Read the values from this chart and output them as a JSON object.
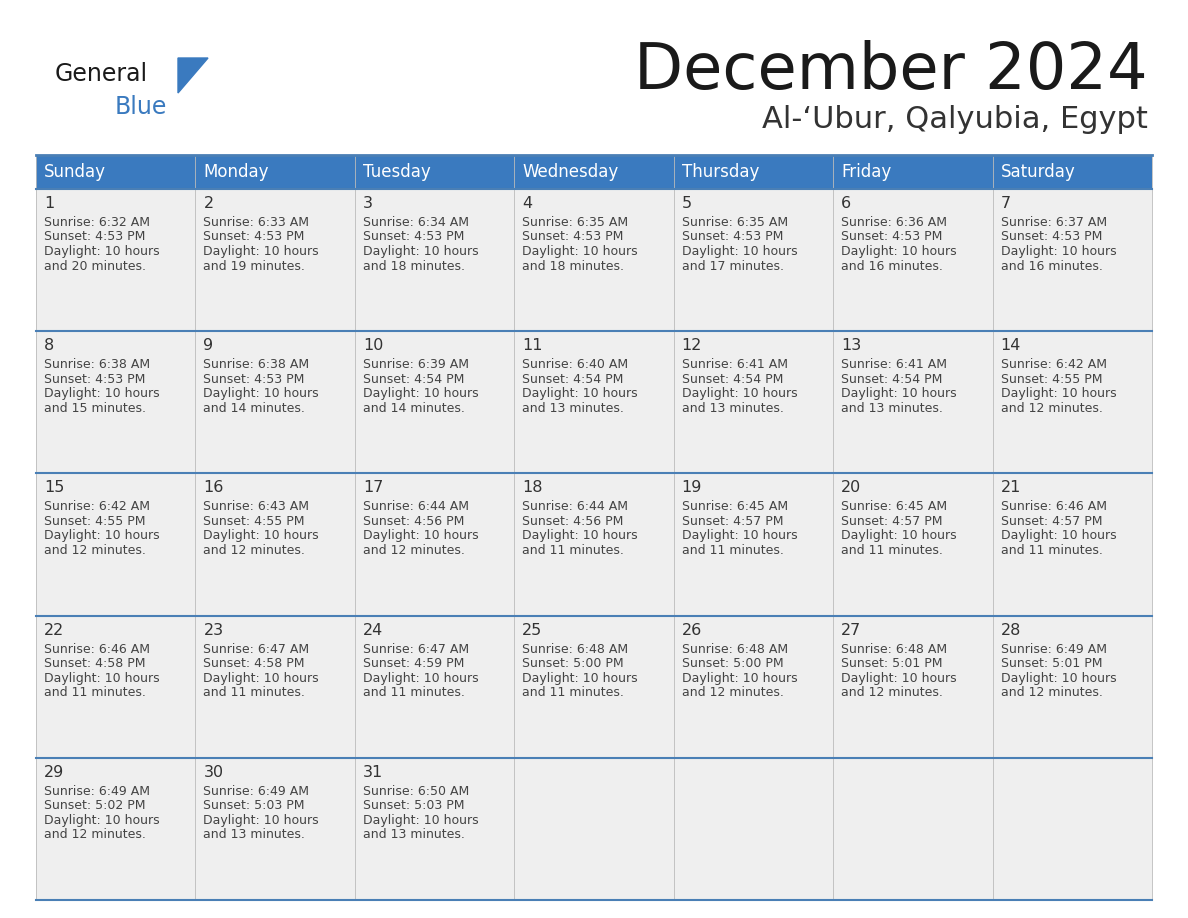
{
  "title": "December 2024",
  "subtitle": "Al-‘Ubur, Qalyubia, Egypt",
  "days_of_week": [
    "Sunday",
    "Monday",
    "Tuesday",
    "Wednesday",
    "Thursday",
    "Friday",
    "Saturday"
  ],
  "header_bg": "#3a7abf",
  "header_text": "#ffffff",
  "cell_bg": "#f0f0f0",
  "border_color": "#3a7abf",
  "text_color": "#444444",
  "line_color": "#4a7fb5",
  "calendar_data": [
    [
      {
        "day": 1,
        "sunrise": "6:32 AM",
        "sunset": "4:53 PM",
        "daylight": "10 hours and 20 minutes."
      },
      {
        "day": 2,
        "sunrise": "6:33 AM",
        "sunset": "4:53 PM",
        "daylight": "10 hours and 19 minutes."
      },
      {
        "day": 3,
        "sunrise": "6:34 AM",
        "sunset": "4:53 PM",
        "daylight": "10 hours and 18 minutes."
      },
      {
        "day": 4,
        "sunrise": "6:35 AM",
        "sunset": "4:53 PM",
        "daylight": "10 hours and 18 minutes."
      },
      {
        "day": 5,
        "sunrise": "6:35 AM",
        "sunset": "4:53 PM",
        "daylight": "10 hours and 17 minutes."
      },
      {
        "day": 6,
        "sunrise": "6:36 AM",
        "sunset": "4:53 PM",
        "daylight": "10 hours and 16 minutes."
      },
      {
        "day": 7,
        "sunrise": "6:37 AM",
        "sunset": "4:53 PM",
        "daylight": "10 hours and 16 minutes."
      }
    ],
    [
      {
        "day": 8,
        "sunrise": "6:38 AM",
        "sunset": "4:53 PM",
        "daylight": "10 hours and 15 minutes."
      },
      {
        "day": 9,
        "sunrise": "6:38 AM",
        "sunset": "4:53 PM",
        "daylight": "10 hours and 14 minutes."
      },
      {
        "day": 10,
        "sunrise": "6:39 AM",
        "sunset": "4:54 PM",
        "daylight": "10 hours and 14 minutes."
      },
      {
        "day": 11,
        "sunrise": "6:40 AM",
        "sunset": "4:54 PM",
        "daylight": "10 hours and 13 minutes."
      },
      {
        "day": 12,
        "sunrise": "6:41 AM",
        "sunset": "4:54 PM",
        "daylight": "10 hours and 13 minutes."
      },
      {
        "day": 13,
        "sunrise": "6:41 AM",
        "sunset": "4:54 PM",
        "daylight": "10 hours and 13 minutes."
      },
      {
        "day": 14,
        "sunrise": "6:42 AM",
        "sunset": "4:55 PM",
        "daylight": "10 hours and 12 minutes."
      }
    ],
    [
      {
        "day": 15,
        "sunrise": "6:42 AM",
        "sunset": "4:55 PM",
        "daylight": "10 hours and 12 minutes."
      },
      {
        "day": 16,
        "sunrise": "6:43 AM",
        "sunset": "4:55 PM",
        "daylight": "10 hours and 12 minutes."
      },
      {
        "day": 17,
        "sunrise": "6:44 AM",
        "sunset": "4:56 PM",
        "daylight": "10 hours and 12 minutes."
      },
      {
        "day": 18,
        "sunrise": "6:44 AM",
        "sunset": "4:56 PM",
        "daylight": "10 hours and 11 minutes."
      },
      {
        "day": 19,
        "sunrise": "6:45 AM",
        "sunset": "4:57 PM",
        "daylight": "10 hours and 11 minutes."
      },
      {
        "day": 20,
        "sunrise": "6:45 AM",
        "sunset": "4:57 PM",
        "daylight": "10 hours and 11 minutes."
      },
      {
        "day": 21,
        "sunrise": "6:46 AM",
        "sunset": "4:57 PM",
        "daylight": "10 hours and 11 minutes."
      }
    ],
    [
      {
        "day": 22,
        "sunrise": "6:46 AM",
        "sunset": "4:58 PM",
        "daylight": "10 hours and 11 minutes."
      },
      {
        "day": 23,
        "sunrise": "6:47 AM",
        "sunset": "4:58 PM",
        "daylight": "10 hours and 11 minutes."
      },
      {
        "day": 24,
        "sunrise": "6:47 AM",
        "sunset": "4:59 PM",
        "daylight": "10 hours and 11 minutes."
      },
      {
        "day": 25,
        "sunrise": "6:48 AM",
        "sunset": "5:00 PM",
        "daylight": "10 hours and 11 minutes."
      },
      {
        "day": 26,
        "sunrise": "6:48 AM",
        "sunset": "5:00 PM",
        "daylight": "10 hours and 12 minutes."
      },
      {
        "day": 27,
        "sunrise": "6:48 AM",
        "sunset": "5:01 PM",
        "daylight": "10 hours and 12 minutes."
      },
      {
        "day": 28,
        "sunrise": "6:49 AM",
        "sunset": "5:01 PM",
        "daylight": "10 hours and 12 minutes."
      }
    ],
    [
      {
        "day": 29,
        "sunrise": "6:49 AM",
        "sunset": "5:02 PM",
        "daylight": "10 hours and 12 minutes."
      },
      {
        "day": 30,
        "sunrise": "6:49 AM",
        "sunset": "5:03 PM",
        "daylight": "10 hours and 13 minutes."
      },
      {
        "day": 31,
        "sunrise": "6:50 AM",
        "sunset": "5:03 PM",
        "daylight": "10 hours and 13 minutes."
      },
      null,
      null,
      null,
      null
    ]
  ]
}
